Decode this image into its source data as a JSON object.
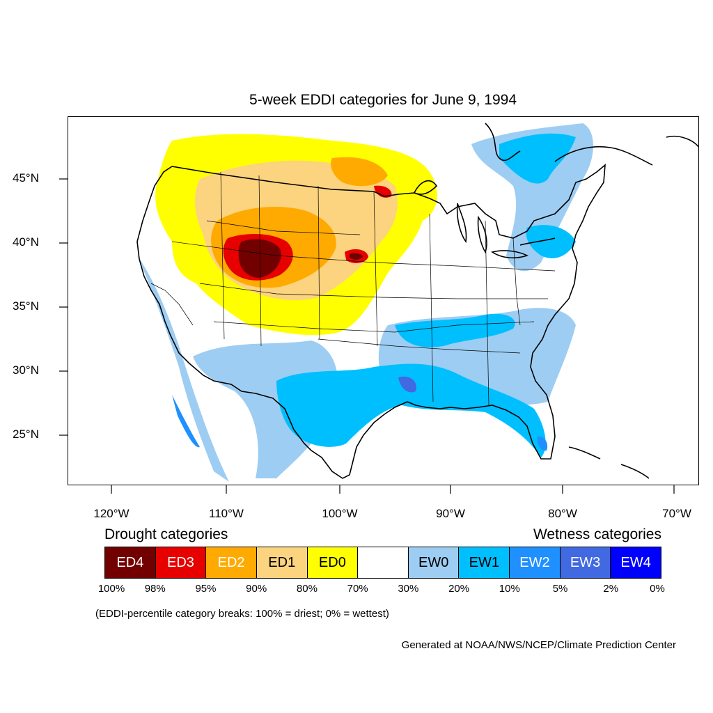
{
  "title": "5-week EDDI categories for June 9, 1994",
  "lat_labels": [
    "45°N",
    "40°N",
    "35°N",
    "30°N",
    "25°N"
  ],
  "lon_labels": [
    "120°W",
    "110°W",
    "100°W",
    "90°W",
    "80°W",
    "70°W"
  ],
  "legend": {
    "drought_heading": "Drought categories",
    "wetness_heading": "Wetness categories",
    "categories": [
      {
        "label": "ED4",
        "color": "#730000",
        "text_color": "#ffffff"
      },
      {
        "label": "ED3",
        "color": "#e60000",
        "text_color": "#ffffff"
      },
      {
        "label": "ED2",
        "color": "#ffaa00",
        "text_color": "#ffffff"
      },
      {
        "label": "ED1",
        "color": "#fcd37f",
        "text_color": "#000000"
      },
      {
        "label": "ED0",
        "color": "#ffff00",
        "text_color": "#000000"
      },
      {
        "label": "",
        "color": "#ffffff",
        "text_color": "#000000"
      },
      {
        "label": "EW0",
        "color": "#9dcdf2",
        "text_color": "#000000"
      },
      {
        "label": "EW1",
        "color": "#00bfff",
        "text_color": "#000000"
      },
      {
        "label": "EW2",
        "color": "#1e90ff",
        "text_color": "#ffffff"
      },
      {
        "label": "EW3",
        "color": "#4169e1",
        "text_color": "#ffffff"
      },
      {
        "label": "EW4",
        "color": "#0000ff",
        "text_color": "#ffffff"
      }
    ],
    "breaks": [
      "100%",
      "98%",
      "95%",
      "90%",
      "80%",
      "70%",
      "30%",
      "20%",
      "10%",
      "5%",
      "2%",
      "0%"
    ]
  },
  "note": "(EDDI-percentile category breaks: 100% = driest; 0% = wettest)",
  "credit": "Generated at NOAA/NWS/NCEP/Climate Prediction Center"
}
